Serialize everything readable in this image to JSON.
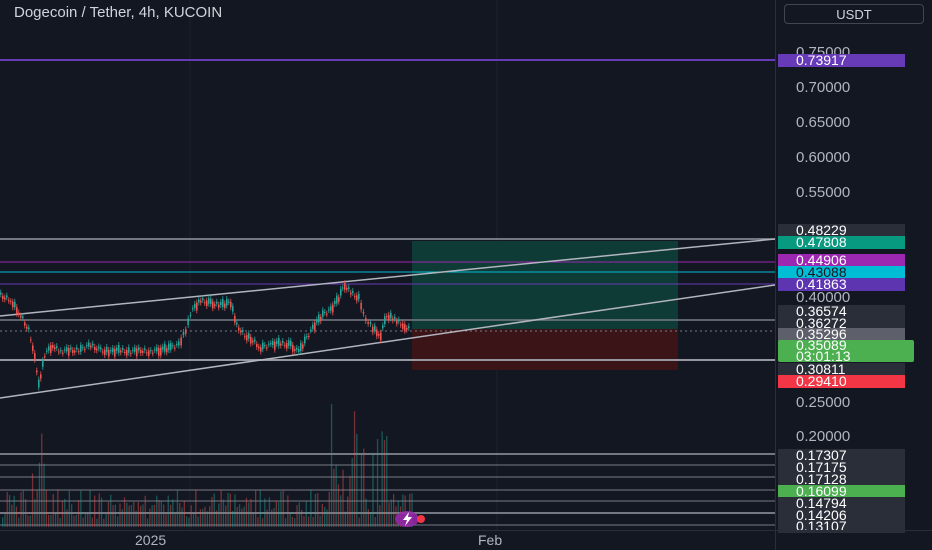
{
  "header": {
    "title": "Dogecoin / Tether, 4h, KUCOIN",
    "currency_button": "USDT"
  },
  "price_axis": {
    "ticks": [
      "0.75000",
      "0.70000",
      "0.65000",
      "0.60000",
      "0.55000",
      "0.40000",
      "0.25000",
      "0.20000"
    ]
  },
  "price_labels": [
    {
      "value": "0.73917",
      "bg": "#673ab7",
      "color": "#ffffff"
    },
    {
      "value": "0.48229",
      "bg": "#2a2e39",
      "color": "#ffffff"
    },
    {
      "value": "0.47808",
      "bg": "#089981",
      "color": "#ffffff"
    },
    {
      "value": "0.44906",
      "bg": "#9c27b0",
      "color": "#ffffff"
    },
    {
      "value": "0.43088",
      "bg": "#00bcd4",
      "color": "#131722"
    },
    {
      "value": "0.41863",
      "bg": "#5e35b1",
      "color": "#ffffff"
    },
    {
      "value": "0.36574",
      "bg": "#2a2e39",
      "color": "#ffffff"
    },
    {
      "value": "0.36272",
      "bg": "#2a2e39",
      "color": "#ffffff"
    },
    {
      "value": "0.35296",
      "bg": "#5d606b",
      "color": "#ffffff"
    },
    {
      "value": "0.30811",
      "bg": "#2a2e39",
      "color": "#ffffff"
    },
    {
      "value": "0.29410",
      "bg": "#f23645",
      "color": "#ffffff"
    },
    {
      "value": "0.17307",
      "bg": "#2a2e39",
      "color": "#ffffff"
    },
    {
      "value": "0.17175",
      "bg": "#2a2e39",
      "color": "#ffffff"
    },
    {
      "value": "0.17128",
      "bg": "#2a2e39",
      "color": "#ffffff"
    },
    {
      "value": "0.16099",
      "bg": "#4caf50",
      "color": "#ffffff"
    },
    {
      "value": "0.14794",
      "bg": "#2a2e39",
      "color": "#ffffff"
    },
    {
      "value": "0.14206",
      "bg": "#2a2e39",
      "color": "#ffffff"
    },
    {
      "value": "0.13107",
      "bg": "#2a2e39",
      "color": "#ffffff"
    }
  ],
  "current_price": {
    "value": "0.35089",
    "countdown": "03:01:13",
    "bg": "#4caf50"
  },
  "time_axis": {
    "ticks": [
      "2025",
      "Feb"
    ]
  },
  "colors": {
    "background": "#131722",
    "up": "#26a69a",
    "down": "#ef5350",
    "target_zone": "#0e3b36",
    "stop_zone": "#3b1417"
  },
  "icons": {
    "lightning": "lightning-icon"
  }
}
